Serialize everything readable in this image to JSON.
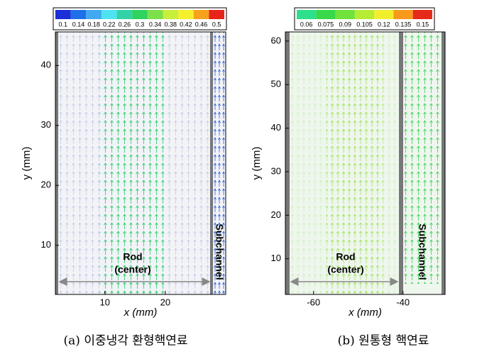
{
  "chart_data": [
    {
      "type": "quiver",
      "xlabel": "x (mm)",
      "ylabel": "y (mm)",
      "xlim": [
        1.8,
        30
      ],
      "ylim": [
        1.8,
        45.6
      ],
      "xticks": [
        10,
        20
      ],
      "yticks": [
        10,
        20,
        30,
        40
      ],
      "colorbar": {
        "ticks": [
          0.1,
          0.14,
          0.18,
          0.22,
          0.26,
          0.3,
          0.34,
          0.38,
          0.42,
          0.46,
          0.5
        ],
        "colors": [
          "#1a2fd6",
          "#1f6fe8",
          "#41a9f0",
          "#4fe3f2",
          "#31d3a6",
          "#2fd35f",
          "#7ce04a",
          "#c6ee3a",
          "#f5f02c",
          "#f7a21c",
          "#e8231a"
        ]
      },
      "annotations": [
        "Rod",
        "(center)",
        "Subchannel"
      ],
      "caption": "(a) 이중냉각 환형핵연료"
    },
    {
      "type": "quiver",
      "xlabel": "x (mm)",
      "ylabel": "y (mm)",
      "xlim": [
        -66.3,
        -30.6
      ],
      "ylim": [
        1.8,
        62.1
      ],
      "xticks": [
        -60,
        -40
      ],
      "yticks": [
        10,
        20,
        30,
        40,
        50,
        60
      ],
      "colorbar": {
        "ticks": [
          0.06,
          0.075,
          0.09,
          0.105,
          0.12,
          0.135,
          0.15
        ],
        "colors": [
          "#2ee08c",
          "#38d94a",
          "#6fe23c",
          "#b7ec35",
          "#f1ef2c",
          "#f79a1c",
          "#e62a1a"
        ]
      },
      "annotations": [
        "Rod",
        "(center)",
        "Subchannel"
      ],
      "caption": "(b) 원통형 핵연료"
    }
  ]
}
